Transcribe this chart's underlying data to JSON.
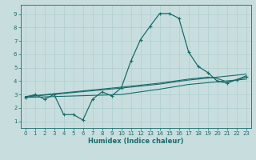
{
  "xlabel": "Humidex (Indice chaleur)",
  "xlim": [
    -0.5,
    23.5
  ],
  "ylim": [
    0.5,
    9.7
  ],
  "yticks": [
    1,
    2,
    3,
    4,
    5,
    6,
    7,
    8,
    9
  ],
  "xticks": [
    0,
    1,
    2,
    3,
    4,
    5,
    6,
    7,
    8,
    9,
    10,
    11,
    12,
    13,
    14,
    15,
    16,
    17,
    18,
    19,
    20,
    21,
    22,
    23
  ],
  "bg_color": "#c8dede",
  "line_color": "#1a6b6b",
  "grid_color": "#aecece",
  "line1_x": [
    0,
    1,
    2,
    3,
    4,
    5,
    6,
    7,
    8,
    9,
    10,
    11,
    12,
    13,
    14,
    15,
    16,
    17,
    18,
    19,
    20,
    21,
    22,
    23
  ],
  "line1_y": [
    2.8,
    3.0,
    2.65,
    3.0,
    1.5,
    1.5,
    1.1,
    2.65,
    3.2,
    2.9,
    3.5,
    5.5,
    7.1,
    8.1,
    9.05,
    9.05,
    8.7,
    6.2,
    5.1,
    4.65,
    4.0,
    3.85,
    4.1,
    4.3
  ],
  "line2_x": [
    0,
    10,
    14,
    17,
    19,
    20,
    21,
    22,
    23
  ],
  "line2_y": [
    2.85,
    3.55,
    3.85,
    4.15,
    4.3,
    4.2,
    3.95,
    4.1,
    4.4
  ],
  "line3_x": [
    0,
    10,
    14,
    17,
    20,
    23
  ],
  "line3_y": [
    2.82,
    3.48,
    3.78,
    4.08,
    4.3,
    4.52
  ],
  "line4_x": [
    0,
    10,
    14,
    17,
    20,
    23
  ],
  "line4_y": [
    2.78,
    3.0,
    3.4,
    3.75,
    3.95,
    4.15
  ]
}
